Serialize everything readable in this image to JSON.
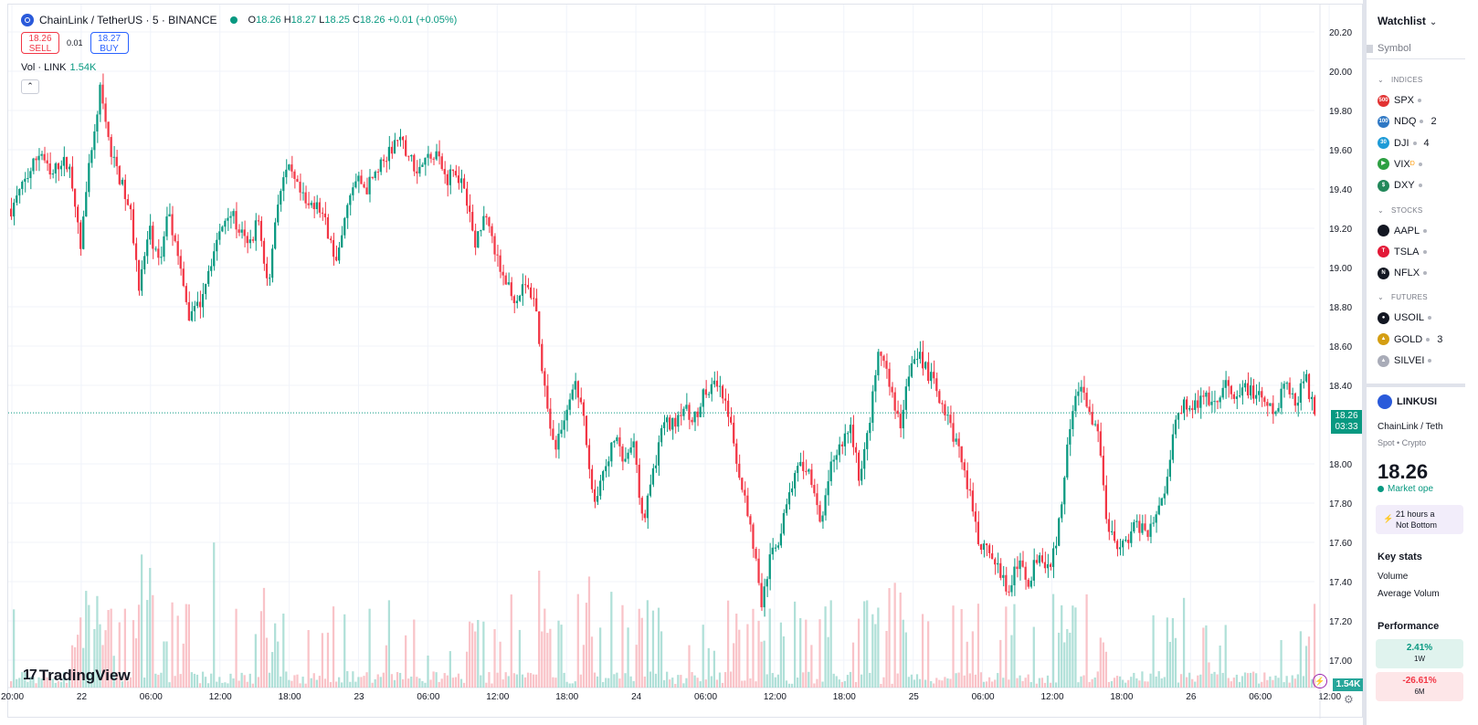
{
  "symbol": {
    "title": "ChainLink / TetherUS · 5 · BINANCE",
    "open_label": "O",
    "open": "18.26",
    "high_label": "H",
    "high": "18.27",
    "low_label": "L",
    "low": "18.25",
    "close_label": "C",
    "close": "18.26",
    "change": "+0.01 (+0.05%)"
  },
  "trade": {
    "sell_price": "18.26",
    "sell_label": "SELL",
    "spread": "0.01",
    "buy_price": "18.27",
    "buy_label": "BUY"
  },
  "volume_legend": {
    "label": "Vol · LINK",
    "value": "1.54K"
  },
  "collapse_icon": "chevron-up-icon",
  "branding": {
    "logo_mark": "17",
    "name": "TradingView"
  },
  "price_axis": {
    "ticks": [
      "20.20",
      "20.00",
      "19.80",
      "19.60",
      "19.40",
      "19.20",
      "19.00",
      "18.80",
      "18.60",
      "18.40",
      "18.00",
      "17.80",
      "17.60",
      "17.40",
      "17.20",
      "17.00"
    ],
    "current_price": "18.26",
    "countdown": "03:33",
    "volume_badge": "1.54K"
  },
  "time_axis": {
    "ticks": [
      "20:00",
      "22",
      "06:00",
      "12:00",
      "18:00",
      "23",
      "06:00",
      "12:00",
      "18:00",
      "24",
      "06:00",
      "12:00",
      "18:00",
      "25",
      "06:00",
      "12:00",
      "18:00",
      "26",
      "06:00",
      "12:00"
    ]
  },
  "chart_data": {
    "type": "candlestick",
    "symbol": "LINKUSDT",
    "interval": "5",
    "ylim": [
      16.9,
      20.3
    ],
    "current_price": 18.26,
    "price_path": [
      [
        0,
        19.3
      ],
      [
        1,
        19.4
      ],
      [
        2,
        19.5
      ],
      [
        3,
        19.6
      ],
      [
        4,
        19.45
      ],
      [
        5,
        19.55
      ],
      [
        6,
        19.5
      ],
      [
        7,
        19.1
      ],
      [
        8,
        19.55
      ],
      [
        9,
        19.9
      ],
      [
        10,
        19.6
      ],
      [
        11,
        19.45
      ],
      [
        12,
        19.3
      ],
      [
        13,
        18.9
      ],
      [
        14,
        19.2
      ],
      [
        15,
        19.0
      ],
      [
        16,
        19.3
      ],
      [
        17,
        19.0
      ],
      [
        18,
        18.75
      ],
      [
        19,
        18.8
      ],
      [
        20,
        19.0
      ],
      [
        21,
        19.15
      ],
      [
        22,
        19.3
      ],
      [
        23,
        19.2
      ],
      [
        24,
        19.1
      ],
      [
        25,
        19.25
      ],
      [
        26,
        18.9
      ],
      [
        27,
        19.35
      ],
      [
        28,
        19.5
      ],
      [
        29,
        19.4
      ],
      [
        30,
        19.3
      ],
      [
        31,
        19.35
      ],
      [
        32,
        19.2
      ],
      [
        33,
        19.0
      ],
      [
        34,
        19.3
      ],
      [
        35,
        19.45
      ],
      [
        36,
        19.4
      ],
      [
        37,
        19.5
      ],
      [
        38,
        19.55
      ],
      [
        39,
        19.65
      ],
      [
        40,
        19.6
      ],
      [
        41,
        19.5
      ],
      [
        42,
        19.55
      ],
      [
        43,
        19.6
      ],
      [
        44,
        19.45
      ],
      [
        45,
        19.5
      ],
      [
        46,
        19.4
      ],
      [
        47,
        19.1
      ],
      [
        48,
        19.3
      ],
      [
        49,
        19.05
      ],
      [
        50,
        18.95
      ],
      [
        51,
        18.85
      ],
      [
        52,
        18.9
      ],
      [
        53,
        18.85
      ],
      [
        54,
        18.4
      ],
      [
        55,
        18.05
      ],
      [
        56,
        18.2
      ],
      [
        57,
        18.45
      ],
      [
        58,
        18.2
      ],
      [
        59,
        17.8
      ],
      [
        60,
        17.95
      ],
      [
        61,
        18.15
      ],
      [
        62,
        18.0
      ],
      [
        63,
        18.1
      ],
      [
        64,
        17.7
      ],
      [
        65,
        17.95
      ],
      [
        66,
        18.2
      ],
      [
        67,
        18.2
      ],
      [
        68,
        18.3
      ],
      [
        69,
        18.2
      ],
      [
        70,
        18.35
      ],
      [
        71,
        18.4
      ],
      [
        72,
        18.35
      ],
      [
        73,
        18.15
      ],
      [
        74,
        17.9
      ],
      [
        75,
        17.65
      ],
      [
        76,
        17.3
      ],
      [
        77,
        17.55
      ],
      [
        78,
        17.65
      ],
      [
        79,
        17.9
      ],
      [
        80,
        18.0
      ],
      [
        81,
        17.95
      ],
      [
        82,
        17.65
      ],
      [
        83,
        18.0
      ],
      [
        84,
        18.1
      ],
      [
        85,
        18.2
      ],
      [
        86,
        17.9
      ],
      [
        87,
        18.25
      ],
      [
        88,
        18.6
      ],
      [
        89,
        18.4
      ],
      [
        90,
        18.2
      ],
      [
        91,
        18.5
      ],
      [
        92,
        18.55
      ],
      [
        93,
        18.45
      ],
      [
        94,
        18.35
      ],
      [
        95,
        18.2
      ],
      [
        96,
        18.05
      ],
      [
        97,
        17.85
      ],
      [
        98,
        17.6
      ],
      [
        99,
        17.55
      ],
      [
        100,
        17.45
      ],
      [
        101,
        17.35
      ],
      [
        102,
        17.5
      ],
      [
        103,
        17.4
      ],
      [
        104,
        17.55
      ],
      [
        105,
        17.45
      ],
      [
        106,
        17.65
      ],
      [
        107,
        18.1
      ],
      [
        108,
        18.4
      ],
      [
        109,
        18.3
      ],
      [
        110,
        18.15
      ],
      [
        111,
        17.7
      ],
      [
        112,
        17.55
      ],
      [
        113,
        17.6
      ],
      [
        114,
        17.7
      ],
      [
        115,
        17.65
      ],
      [
        116,
        17.75
      ],
      [
        117,
        17.9
      ],
      [
        118,
        18.25
      ],
      [
        119,
        18.3
      ],
      [
        120,
        18.3
      ],
      [
        121,
        18.35
      ],
      [
        122,
        18.3
      ],
      [
        123,
        18.4
      ],
      [
        124,
        18.3
      ],
      [
        125,
        18.4
      ],
      [
        126,
        18.35
      ],
      [
        127,
        18.3
      ],
      [
        128,
        18.25
      ],
      [
        129,
        18.4
      ],
      [
        130,
        18.3
      ],
      [
        131,
        18.45
      ],
      [
        132,
        18.26
      ]
    ],
    "volume_scale_max": 1.0
  },
  "watchlist": {
    "title": "Watchlist",
    "column_symbol": "Symbol",
    "sections": [
      {
        "name": "INDICES",
        "items": [
          {
            "symbol": "SPX",
            "badge": "500",
            "color": "#e23232"
          },
          {
            "symbol": "NDQ",
            "badge": "100",
            "color": "#2f78c4",
            "extra": "2"
          },
          {
            "symbol": "DJI",
            "badge": "30",
            "color": "#1e9bd7",
            "extra": "4"
          },
          {
            "symbol": "VIX",
            "badge": "▶",
            "color": "#2ea043",
            "flag": "D"
          },
          {
            "symbol": "DXY",
            "badge": "$",
            "color": "#22885a"
          }
        ]
      },
      {
        "name": "STOCKS",
        "items": [
          {
            "symbol": "AAPL",
            "badge": "",
            "color": "#131722"
          },
          {
            "symbol": "TSLA",
            "badge": "T",
            "color": "#e31937"
          },
          {
            "symbol": "NFLX",
            "badge": "N",
            "color": "#131722"
          }
        ]
      },
      {
        "name": "FUTURES",
        "items": [
          {
            "symbol": "USOIL",
            "badge": "●",
            "color": "#131722"
          },
          {
            "symbol": "GOLD",
            "badge": "▲",
            "color": "#d49e13",
            "extra": "3"
          },
          {
            "symbol": "SILVEI",
            "badge": "▲",
            "color": "#a9acb8"
          }
        ]
      }
    ]
  },
  "details": {
    "ticker": "LINKUSI",
    "name": "ChainLink / Teth",
    "type": "Spot • Crypto",
    "price": "18.26",
    "market_status": "Market ope",
    "news_line1": "21 hours a",
    "news_line2": "Not Bottom",
    "key_stats": "Key stats",
    "volume": "Volume",
    "average_volume": "Average Volum",
    "performance": "Performance",
    "perf_1w_value": "2.41%",
    "perf_1w_label": "1W",
    "perf_6m_value": "-26.61%",
    "perf_6m_label": "6M"
  },
  "colors": {
    "up": "#089981",
    "down": "#f23645",
    "accent": "#2962ff"
  }
}
